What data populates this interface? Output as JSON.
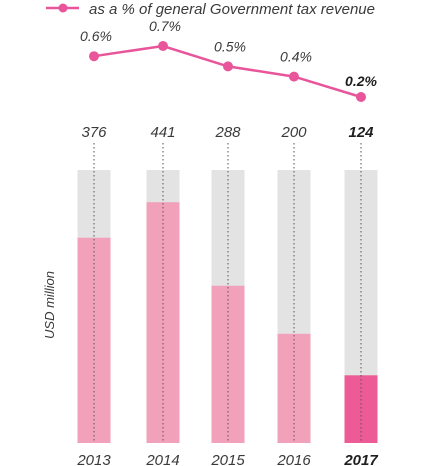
{
  "chart_data": {
    "type": "bar",
    "categories": [
      "2013",
      "2014",
      "2015",
      "2016",
      "2017"
    ],
    "highlight_category": "2017",
    "ylabel": "USD million",
    "ylim": [
      0,
      500
    ],
    "bar_series": {
      "values": [
        376,
        441,
        288,
        200,
        124
      ],
      "value_labels": [
        "376",
        "441",
        "288",
        "200",
        "124"
      ]
    },
    "line_series": {
      "name": "as a % of general Government tax revenue",
      "values": [
        0.6,
        0.7,
        0.5,
        0.4,
        0.2
      ],
      "value_labels": [
        "0.6%",
        "0.7%",
        "0.5%",
        "0.4%",
        "0.2%"
      ],
      "ylim": [
        0.2,
        0.7
      ]
    },
    "colors": {
      "bar": "#f2a1bb",
      "bar_highlight": "#ec5b96",
      "bar_background": "#e3e3e3",
      "line": "#e8559a",
      "text": "#3a3a3a"
    }
  }
}
